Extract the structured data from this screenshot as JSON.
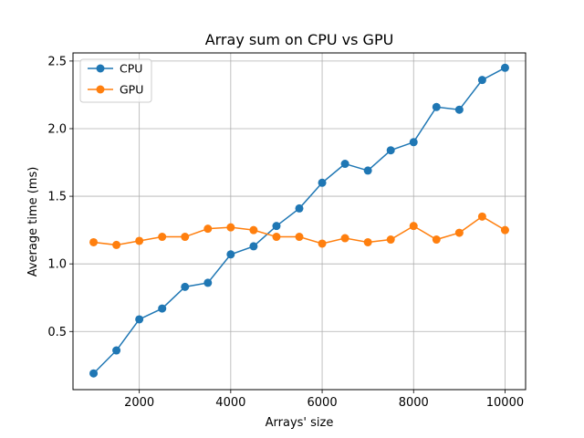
{
  "chart_data": {
    "type": "line",
    "title": "Array sum on CPU vs GPU",
    "xlabel": "Arrays' size",
    "ylabel": "Average time (ms)",
    "xlim": [
      550,
      10450
    ],
    "ylim": [
      0.07,
      2.56
    ],
    "xticks": [
      2000,
      4000,
      6000,
      8000,
      10000
    ],
    "xtick_labels": [
      "2000",
      "4000",
      "6000",
      "8000",
      "10000"
    ],
    "yticks": [
      0.5,
      1.0,
      1.5,
      2.0,
      2.5
    ],
    "ytick_labels": [
      "0.5",
      "1.0",
      "1.5",
      "2.0",
      "2.5"
    ],
    "grid": true,
    "legend_position": "top-left",
    "x": [
      1000,
      1500,
      2000,
      2500,
      3000,
      3500,
      4000,
      4500,
      5000,
      5500,
      6000,
      6500,
      7000,
      7500,
      8000,
      8500,
      9000,
      9500,
      10000
    ],
    "series": [
      {
        "name": "CPU",
        "color": "#1f77b4",
        "values": [
          0.19,
          0.36,
          0.59,
          0.67,
          0.83,
          0.86,
          1.07,
          1.13,
          1.28,
          1.41,
          1.6,
          1.74,
          1.69,
          1.84,
          1.9,
          2.16,
          2.14,
          2.36,
          2.45
        ]
      },
      {
        "name": "GPU",
        "color": "#ff7f0e",
        "values": [
          1.16,
          1.14,
          1.17,
          1.2,
          1.2,
          1.26,
          1.27,
          1.25,
          1.2,
          1.2,
          1.15,
          1.19,
          1.16,
          1.18,
          1.28,
          1.18,
          1.23,
          1.35,
          1.25
        ]
      }
    ]
  }
}
